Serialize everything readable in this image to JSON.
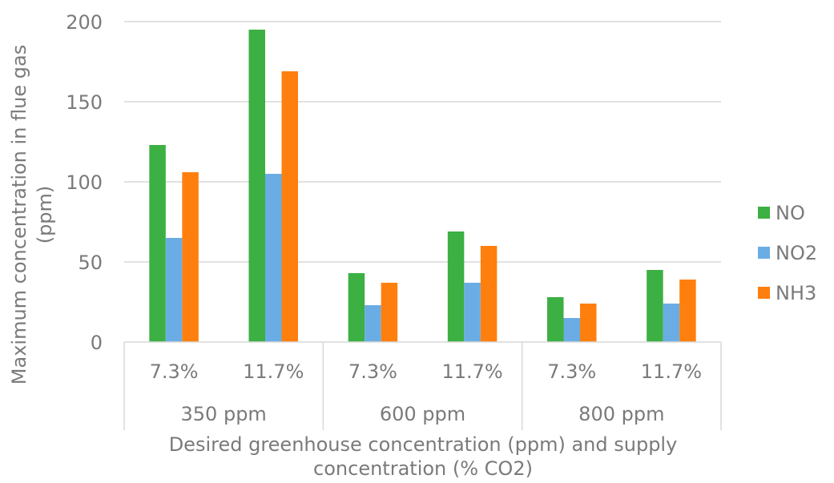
{
  "chart_data": {
    "type": "bar",
    "xlabel": "Desired greenhouse concentration (ppm) and supply concentration (% CO2)",
    "xlabel_lines": [
      "Desired greenhouse concentration (ppm) and supply",
      "concentration (% CO2)"
    ],
    "ylabel": "Maximum concentration in flue gas (ppm)",
    "ylabel_lines": [
      "Maximum concentration in flue gas",
      "(ppm)"
    ],
    "ylim": [
      0,
      200
    ],
    "yticks": [
      0,
      50,
      100,
      150,
      200
    ],
    "grid": true,
    "legend": "right",
    "groups": [
      {
        "label": "350 ppm",
        "categories": [
          "7.3%",
          "11.7%"
        ]
      },
      {
        "label": "600 ppm",
        "categories": [
          "7.3%",
          "11.7%"
        ]
      },
      {
        "label": "800 ppm",
        "categories": [
          "7.3%",
          "11.7%"
        ]
      }
    ],
    "categories": [
      "7.3%",
      "11.7%",
      "7.3%",
      "11.7%",
      "7.3%",
      "11.7%"
    ],
    "series": [
      {
        "name": "NO",
        "color": "#3cb043",
        "values": [
          123,
          195,
          43,
          69,
          28,
          45
        ]
      },
      {
        "name": "NO2",
        "color": "#6aade4",
        "values": [
          65,
          105,
          23,
          37,
          15,
          24
        ]
      },
      {
        "name": "NH3",
        "color": "#ff7f0e",
        "values": [
          106,
          169,
          37,
          60,
          24,
          39
        ]
      }
    ]
  }
}
